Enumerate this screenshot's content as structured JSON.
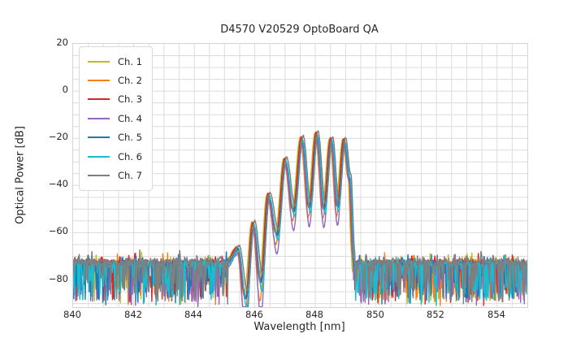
{
  "chart_data": {
    "type": "line",
    "title": "D4570 V20529 OptoBoard QA",
    "xlabel": "Wavelength [nm]",
    "ylabel": "Optical Power [dB]",
    "xlim": [
      840,
      855
    ],
    "ylim": [
      -91.5,
      20
    ],
    "xticks": {
      "values": [
        840,
        842,
        844,
        846,
        848,
        850,
        852,
        854
      ],
      "labels": [
        "840",
        "842",
        "844",
        "846",
        "848",
        "850",
        "852",
        "854"
      ]
    },
    "yticks": {
      "values": [
        20,
        0,
        -20,
        -40,
        -60,
        -80
      ],
      "labels": [
        "20",
        "0",
        "−20",
        "−40",
        "−60",
        "−80"
      ]
    },
    "grid": {
      "x_step": 0.5,
      "y_step": 5,
      "color": "#dcdcdc",
      "spine_color": "#d4d4d4"
    },
    "legend": {
      "position": "upper left"
    },
    "series": [
      {
        "name": "Ch. 1",
        "color": "#bcbd22",
        "shift_nm": -0.05,
        "amp_db": 0.3,
        "valley_extra_db": -1.0,
        "floor_off_db": 0.0,
        "seed": 101
      },
      {
        "name": "Ch. 2",
        "color": "#ff7f0e",
        "shift_nm": -0.033,
        "amp_db": -0.8,
        "valley_extra_db": -5.0,
        "floor_off_db": -0.3,
        "seed": 202
      },
      {
        "name": "Ch. 3",
        "color": "#d62728",
        "shift_nm": -0.017,
        "amp_db": 0.4,
        "valley_extra_db": -2.0,
        "floor_off_db": 0.2,
        "seed": 303
      },
      {
        "name": "Ch. 4",
        "color": "#9467bd",
        "shift_nm": 0.0,
        "amp_db": -2.3,
        "valley_extra_db": -7.5,
        "floor_off_db": -0.8,
        "seed": 404
      },
      {
        "name": "Ch. 5",
        "color": "#1f77b4",
        "shift_nm": 0.017,
        "amp_db": -0.5,
        "valley_extra_db": -1.5,
        "floor_off_db": -0.2,
        "seed": 505
      },
      {
        "name": "Ch. 6",
        "color": "#17becf",
        "shift_nm": 0.033,
        "amp_db": -1.0,
        "valley_extra_db": -3.0,
        "floor_off_db": -0.5,
        "seed": 606
      },
      {
        "name": "Ch. 7",
        "color": "#7f7f7f",
        "shift_nm": 0.05,
        "amp_db": 1.0,
        "valley_extra_db": -0.5,
        "floor_off_db": 0.6,
        "seed": 707
      }
    ],
    "envelope": {
      "description": "fringe-modulated laser spectrum, anchors [wavelength_nm, power_db, type p=peak v=valley e=edge]",
      "anchors": [
        [
          845.1,
          -72.0,
          "e"
        ],
        [
          845.44,
          -66.5,
          "p"
        ],
        [
          845.7,
          -84.0,
          "v"
        ],
        [
          845.95,
          -56.0,
          "p"
        ],
        [
          846.2,
          -77.0,
          "v"
        ],
        [
          846.45,
          -44.0,
          "p"
        ],
        [
          846.73,
          -59.0,
          "v"
        ],
        [
          847.0,
          -29.0,
          "p"
        ],
        [
          847.28,
          -49.0,
          "v"
        ],
        [
          847.55,
          -20.0,
          "p"
        ],
        [
          847.8,
          -47.5,
          "v"
        ],
        [
          848.04,
          -18.0,
          "p"
        ],
        [
          848.28,
          -48.0,
          "v"
        ],
        [
          848.52,
          -20.3,
          "p"
        ],
        [
          848.73,
          -47.0,
          "v"
        ],
        [
          848.95,
          -20.8,
          "p"
        ],
        [
          849.12,
          -36.0,
          "e"
        ],
        [
          849.26,
          -70.0,
          "e"
        ]
      ],
      "lobe_peaks_nm": [
        845.44,
        845.95,
        846.45,
        847.0,
        847.55,
        848.04,
        848.52,
        848.95
      ],
      "lobe_peaks_db": [
        -66.5,
        -56.0,
        -44.0,
        -29.0,
        -20.0,
        -18.0,
        -20.3,
        -20.8
      ]
    },
    "noise": {
      "floor_db": -71.3,
      "band_db": 3,
      "spike_prob": 0.33,
      "spike_depth_db": 17,
      "up_spike_prob": 0.05,
      "clip_db": -91.4,
      "noise_regions_nm": [
        [
          840,
          845.1
        ],
        [
          849.26,
          855
        ]
      ]
    }
  }
}
